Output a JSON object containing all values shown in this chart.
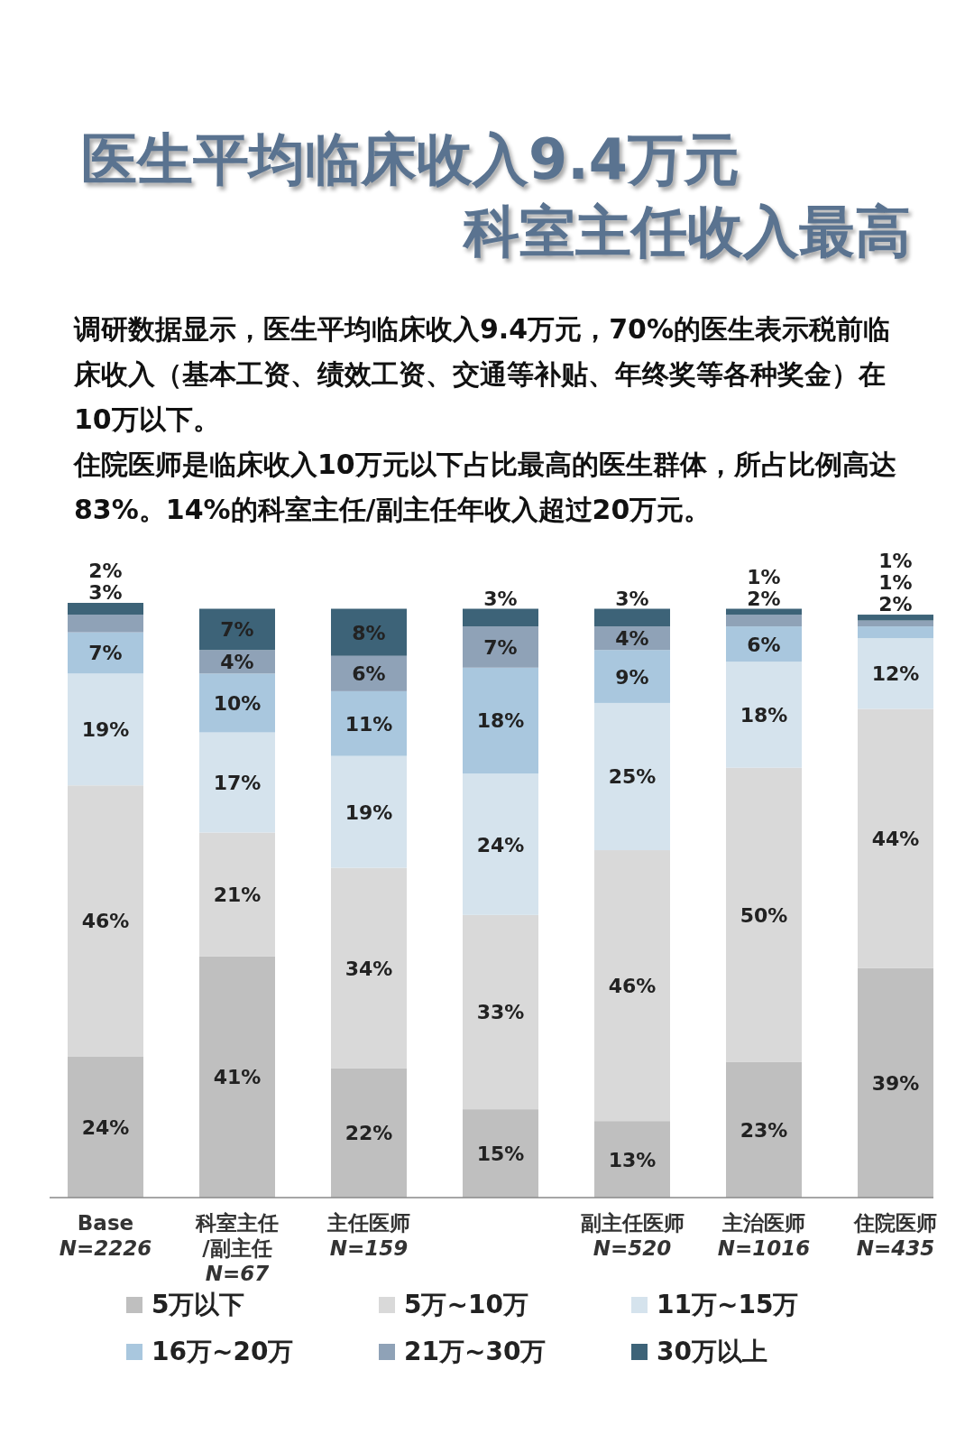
{
  "chart_data": {
    "type": "bar",
    "stacked": true,
    "legend": "bottom",
    "title": "医生平均临床收入9.4万元",
    "subtitle": "科室主任收入最高",
    "annotations": [
      "调研数据显示，医生平均临床收入9.4万元，70%的医生表示税前临床收入（基本工资、绩效工资、交通等补贴、年终奖等各种奖金）在10万以下。",
      "住院医师是临床收入10万元以下占比最高的医生群体，所占比例高达83%。14%的科室主任/副主任年收入超过20万元。"
    ],
    "categories": [
      "Base\nN=2226",
      "科室主任\n/副主任\nN=67",
      "主任医师\nN=159",
      null,
      "副主任医师\nN=520",
      "主治医师\nN=1016",
      "住院医师\nN=435"
    ],
    "series": [
      {
        "name": "5万以下",
        "color": "#bfbfbf",
        "values": [
          24,
          41,
          22,
          15,
          13,
          23,
          39
        ],
        "value_labels": [
          "24%",
          "41%",
          "22%",
          "15%",
          "13%",
          "23%",
          "39%"
        ]
      },
      {
        "name": "5万~10万",
        "color": "#d9d9d9",
        "values": [
          46,
          21,
          34,
          33,
          46,
          50,
          44
        ],
        "value_labels": [
          "46%",
          "21%",
          "34%",
          "33%",
          "46%",
          "50%",
          "44%"
        ]
      },
      {
        "name": "11万~15万",
        "color": "#d5e3ed",
        "values": [
          19,
          17,
          19,
          24,
          25,
          18,
          12
        ],
        "value_labels": [
          "19%",
          "17%",
          "19%",
          "24%",
          "25%",
          "18%",
          "12%"
        ]
      },
      {
        "name": "16万~20万",
        "color": "#a9c7de",
        "values": [
          7,
          10,
          11,
          18,
          9,
          6,
          2
        ],
        "value_labels": [
          "7%",
          "10%",
          "11%",
          "18%",
          "9%",
          "6%",
          "2%"
        ]
      },
      {
        "name": "21万~30万",
        "color": "#8fa2b7",
        "values": [
          3,
          4,
          6,
          7,
          4,
          2,
          1
        ],
        "value_labels": [
          "3%",
          "4%",
          "6%",
          "7%",
          "4%",
          "2%",
          "1%"
        ]
      },
      {
        "name": "30万以上",
        "color": "#3d6378",
        "values": [
          2,
          7,
          8,
          3,
          3,
          1,
          1
        ],
        "value_labels": [
          "2%",
          "7%",
          "8%",
          "3%",
          "3%",
          "1%",
          "1%"
        ]
      }
    ]
  }
}
